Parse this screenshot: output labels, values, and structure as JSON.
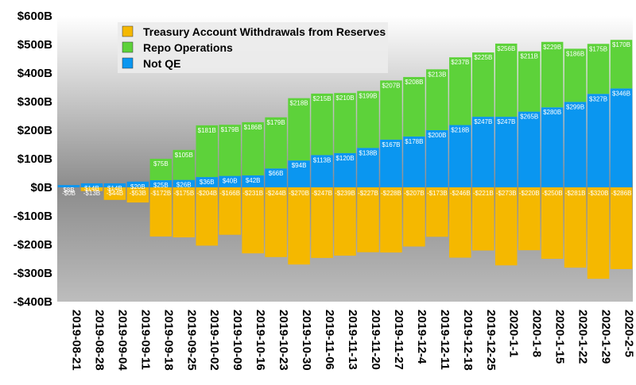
{
  "chart_data": {
    "type": "bar",
    "stacked": true,
    "categories": [
      "2019-08-21",
      "2019-08-28",
      "2019-09-04",
      "2019-09-11",
      "2019-09-18",
      "2019-09-25",
      "2019-10-02",
      "2019-10-09",
      "2019-10-16",
      "2019-10-23",
      "2019-10-30",
      "2019-11-06",
      "2019-11-13",
      "2019-11-20",
      "2019-11-27",
      "2019-12-4",
      "2019-12-11",
      "2019-12-18",
      "2019-12-25",
      "2020-1-1",
      "2020-1-8",
      "2020-1-15",
      "2020-1-22",
      "2020-1-29",
      "2020-2-5"
    ],
    "series": [
      {
        "name": "Treasury Account Withdrawals from Reserves",
        "color": "#F5B800",
        "values": [
          0,
          -13,
          -44,
          -53,
          -172,
          -175,
          -204,
          -166,
          -231,
          -244,
          -270,
          -247,
          -239,
          -227,
          -228,
          -207,
          -173,
          -246,
          -221,
          -273,
          -220,
          -250,
          -281,
          -320,
          -286
        ],
        "labels": [
          "-$0B",
          "-$13B",
          "-$44B",
          "-$53B",
          "-$172B",
          "-$175B",
          "-$204B",
          "-$166B",
          "-$231B",
          "-$244B",
          "-$270B",
          "-$247B",
          "-$239B",
          "-$227B",
          "-$228B",
          "-$207B",
          "-$173B",
          "-$246B",
          "-$221B",
          "-$273B",
          "-$220B",
          "-$250B",
          "-$281B",
          "-$320B",
          "-$286B"
        ]
      },
      {
        "name": "Not QE",
        "color": "#0A96F0",
        "values": [
          8,
          14,
          14,
          20,
          25,
          26,
          36,
          40,
          42,
          66,
          94,
          113,
          120,
          138,
          167,
          178,
          200,
          218,
          247,
          247,
          265,
          280,
          299,
          327,
          346
        ],
        "labels": [
          "$8B",
          "$14B",
          "$14B",
          "$20B",
          "$25B",
          "$26B",
          "$36B",
          "$40B",
          "$42B",
          "$66B",
          "$94B",
          "$113B",
          "$120B",
          "$138B",
          "$167B",
          "$178B",
          "$200B",
          "$218B",
          "$247B",
          "$247B",
          "$265B",
          "$280B",
          "$299B",
          "$327B",
          "$346B"
        ]
      },
      {
        "name": "Repo Operations",
        "color": "#5DD23A",
        "values": [
          0,
          0,
          0,
          0,
          75,
          105,
          181,
          179,
          186,
          179,
          218,
          215,
          210,
          199,
          207,
          208,
          213,
          237,
          225,
          256,
          211,
          229,
          186,
          175,
          170
        ],
        "labels": [
          "",
          "",
          "",
          "",
          "$75B",
          "$105B",
          "$181B",
          "$179B",
          "$186B",
          "$179B",
          "$218B",
          "$215B",
          "$210B",
          "$199B",
          "$207B",
          "$208B",
          "$213B",
          "$237B",
          "$225B",
          "$256B",
          "$211B",
          "$229B",
          "$186B",
          "$175B",
          "$170B"
        ]
      }
    ],
    "legend_order": [
      "Treasury Account Withdrawals from Reserves",
      "Repo Operations",
      "Not QE"
    ],
    "ylim": [
      -400,
      600
    ],
    "yticks": [
      600,
      500,
      400,
      300,
      200,
      100,
      0,
      -100,
      -200,
      -300,
      -400
    ],
    "ytick_labels": [
      "$600B",
      "$500B",
      "$400B",
      "$300B",
      "$200B",
      "$100B",
      "$0B",
      "-$100B",
      "-$200B",
      "-$300B",
      "-$400B"
    ],
    "title": "",
    "xlabel": "",
    "ylabel": "",
    "legend_position": "top-left",
    "background": "gray gradient",
    "grid": false
  }
}
